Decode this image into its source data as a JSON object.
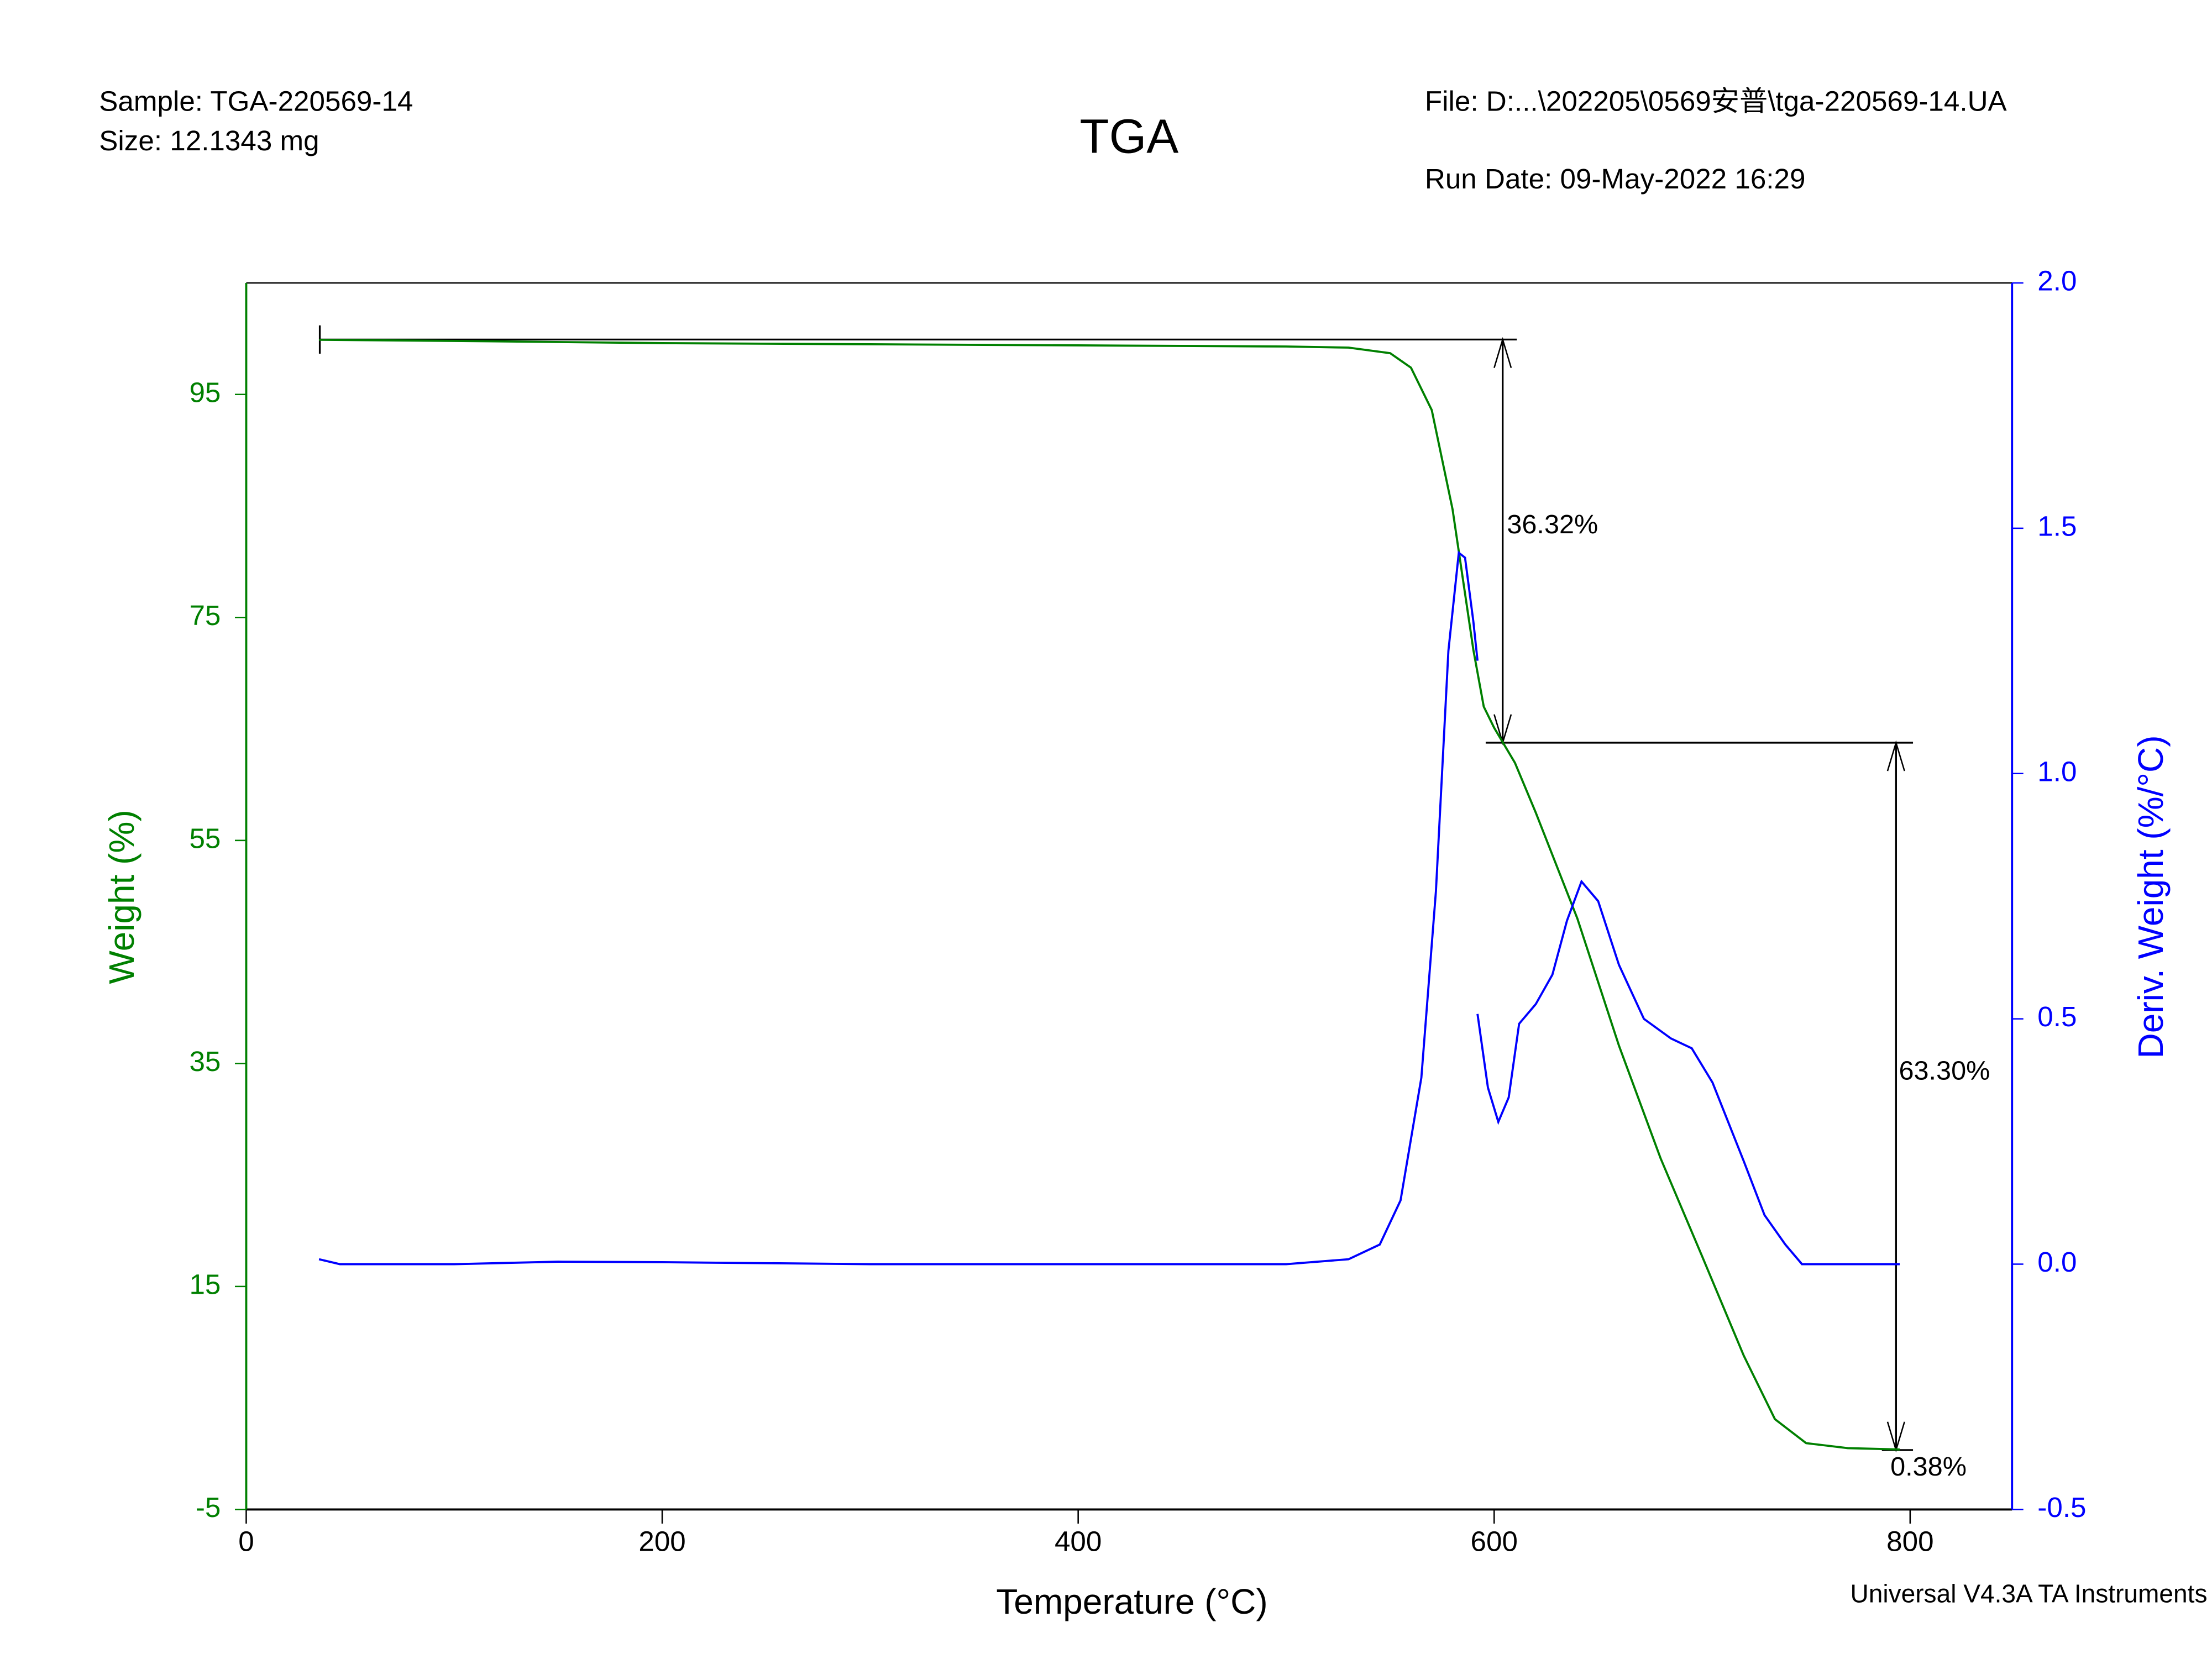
{
  "header": {
    "sample": "Sample: TGA-220569-14",
    "size": "Size:  12.1343 mg",
    "file": "File: D:...\\202205\\0569安普\\tga-220569-14.UA",
    "run_date": "Run Date: 09-May-2022 16:29",
    "footer": "Universal V4.3A TA Instruments"
  },
  "chart_data": {
    "type": "line",
    "title": "TGA",
    "xlabel": "Temperature (°C)",
    "ylabel": "Weight (%)",
    "y2label": "Deriv. Weight (%/°C)",
    "xlim": [
      0,
      849
    ],
    "xticks": [
      0,
      200,
      400,
      600,
      800
    ],
    "ylim": [
      -5,
      105
    ],
    "yticks": [
      -5,
      15,
      35,
      55,
      75,
      95
    ],
    "y2lim": [
      -0.5,
      2.0
    ],
    "y2ticks": [
      -0.5,
      {
        "value": 0,
        "label": "0.0"
      },
      0.5,
      {
        "value": 1,
        "label": "1.0"
      },
      1.5,
      {
        "value": 2,
        "label": "2.0"
      }
    ],
    "grid": false,
    "series": [
      {
        "color": "#008000",
        "axis": "y",
        "x": [
          35,
          100,
          200,
          300,
          400,
          500,
          530,
          550,
          560,
          570,
          580,
          590,
          595,
          600,
          610,
          620,
          640,
          660,
          680,
          700,
          720,
          735,
          750,
          770,
          795
        ],
        "values": [
          99.9,
          99.8,
          99.6,
          99.5,
          99.4,
          99.3,
          99.2,
          98.7,
          97.4,
          93.6,
          84.7,
          72.1,
          67,
          65.1,
          61.96,
          57.5,
          48,
          36.6,
          26.5,
          17.7,
          8.8,
          3.1,
          0.95,
          0.5,
          0.38
        ]
      },
      {
        "color": "#0000ff",
        "axis": "y2",
        "x": [
          35,
          45,
          100,
          150,
          200,
          300,
          400,
          500,
          530,
          545,
          555,
          565,
          572,
          578,
          583,
          586,
          590,
          592,
          592,
          592,
          597,
          602,
          607,
          612,
          620,
          628,
          635,
          642,
          650,
          660,
          672,
          685,
          695,
          705,
          720,
          730,
          740,
          748,
          795
        ],
        "values": [
          0.01,
          0,
          0,
          0.005,
          0.004,
          0,
          0,
          0,
          0.01,
          0.04,
          0.13,
          0.38,
          0.76,
          1.25,
          1.45,
          1.44,
          1.31,
          1.23,
          null,
          0.51,
          0.36,
          0.29,
          0.34,
          0.49,
          0.53,
          0.59,
          0.7,
          0.78,
          0.74,
          0.61,
          0.5,
          0.46,
          0.44,
          0.37,
          0.21,
          0.1,
          0.04,
          0,
          0
        ]
      }
    ],
    "annotations": [
      "36.32%",
      "63.30%",
      "0.38%"
    ]
  }
}
